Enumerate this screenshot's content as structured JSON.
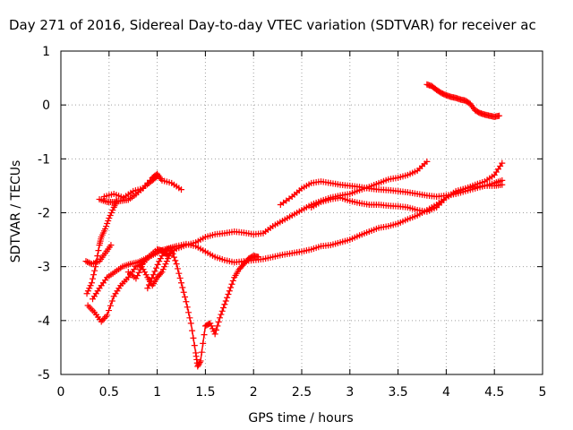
{
  "chart_data": {
    "type": "scatter",
    "title": "Day 271 of 2016, Sidereal Day-to-day VTEC variation (SDTVAR) for receiver ac",
    "xlabel": "GPS time / hours",
    "ylabel": "SDTVAR / TECUs",
    "xlim": [
      0,
      5
    ],
    "ylim": [
      -5,
      1
    ],
    "xticks": [
      "0",
      "0.5",
      "1",
      "1.5",
      "2",
      "2.5",
      "3",
      "3.5",
      "4",
      "4.5",
      "5"
    ],
    "yticks": [
      "-5",
      "-4",
      "-3",
      "-2",
      "-1",
      "0",
      "1"
    ],
    "grid": true,
    "marker": "+",
    "color": "#ff0000",
    "series": [
      {
        "values": [
          [
            0.45,
            -1.7
          ],
          [
            0.55,
            -1.65
          ],
          [
            0.65,
            -1.72
          ],
          [
            0.75,
            -1.6
          ],
          [
            0.85,
            -1.55
          ],
          [
            0.95,
            -1.35
          ],
          [
            1.0,
            -1.28
          ],
          [
            1.05,
            -1.4
          ],
          [
            1.15,
            -1.45
          ],
          [
            1.25,
            -1.57
          ]
        ]
      },
      {
        "values": [
          [
            0.4,
            -1.75
          ],
          [
            0.48,
            -1.8
          ],
          [
            0.55,
            -1.8
          ],
          [
            0.62,
            -1.78
          ],
          [
            0.7,
            -1.76
          ],
          [
            0.78,
            -1.66
          ],
          [
            0.88,
            -1.5
          ],
          [
            0.95,
            -1.4
          ],
          [
            1.0,
            -1.32
          ]
        ]
      },
      {
        "values": [
          [
            0.28,
            -3.72
          ],
          [
            0.35,
            -3.85
          ],
          [
            0.42,
            -4.02
          ],
          [
            0.48,
            -3.9
          ],
          [
            0.55,
            -3.55
          ],
          [
            0.62,
            -3.35
          ],
          [
            0.7,
            -3.2
          ],
          [
            0.78,
            -3.0
          ],
          [
            0.85,
            -2.95
          ],
          [
            0.92,
            -2.8
          ],
          [
            1.0,
            -2.68
          ],
          [
            1.05,
            -2.7
          ],
          [
            1.1,
            -2.78
          ],
          [
            1.2,
            -2.67
          ],
          [
            1.3,
            -2.6
          ],
          [
            1.4,
            -2.55
          ],
          [
            1.5,
            -2.45
          ],
          [
            1.6,
            -2.4
          ],
          [
            1.7,
            -2.38
          ],
          [
            1.8,
            -2.35
          ],
          [
            1.9,
            -2.37
          ],
          [
            2.0,
            -2.4
          ],
          [
            2.1,
            -2.38
          ],
          [
            2.2,
            -2.25
          ],
          [
            2.3,
            -2.15
          ],
          [
            2.4,
            -2.05
          ],
          [
            2.5,
            -1.95
          ],
          [
            2.6,
            -1.85
          ],
          [
            2.7,
            -1.78
          ],
          [
            2.8,
            -1.72
          ],
          [
            2.9,
            -1.68
          ],
          [
            3.0,
            -1.65
          ],
          [
            3.1,
            -1.58
          ],
          [
            3.2,
            -1.52
          ],
          [
            3.3,
            -1.45
          ],
          [
            3.4,
            -1.38
          ],
          [
            3.5,
            -1.35
          ],
          [
            3.6,
            -1.3
          ],
          [
            3.7,
            -1.22
          ],
          [
            3.8,
            -1.05
          ]
        ]
      },
      {
        "values": [
          [
            0.27,
            -3.5
          ],
          [
            0.32,
            -3.3
          ],
          [
            0.36,
            -3.0
          ],
          [
            0.4,
            -2.6
          ],
          [
            0.42,
            -2.45
          ],
          [
            0.46,
            -2.3
          ],
          [
            0.5,
            -2.1
          ],
          [
            0.55,
            -1.9
          ],
          [
            0.58,
            -1.78
          ]
        ]
      },
      {
        "values": [
          [
            0.26,
            -2.9
          ],
          [
            0.32,
            -2.95
          ],
          [
            0.4,
            -2.9
          ],
          [
            0.46,
            -2.75
          ],
          [
            0.52,
            -2.6
          ]
        ]
      },
      {
        "values": [
          [
            0.33,
            -3.6
          ],
          [
            0.4,
            -3.4
          ],
          [
            0.48,
            -3.2
          ],
          [
            0.56,
            -3.1
          ],
          [
            0.64,
            -3.0
          ],
          [
            0.72,
            -2.95
          ],
          [
            0.8,
            -2.92
          ],
          [
            0.88,
            -2.85
          ],
          [
            0.96,
            -2.78
          ],
          [
            1.04,
            -2.7
          ],
          [
            1.12,
            -2.66
          ],
          [
            1.2,
            -2.62
          ],
          [
            1.3,
            -2.58
          ],
          [
            1.4,
            -2.62
          ],
          [
            1.5,
            -2.72
          ],
          [
            1.6,
            -2.82
          ],
          [
            1.7,
            -2.88
          ],
          [
            1.8,
            -2.92
          ],
          [
            1.9,
            -2.9
          ],
          [
            2.0,
            -2.88
          ],
          [
            2.1,
            -2.86
          ],
          [
            2.2,
            -2.82
          ],
          [
            2.3,
            -2.78
          ],
          [
            2.4,
            -2.75
          ],
          [
            2.5,
            -2.72
          ],
          [
            2.6,
            -2.68
          ],
          [
            2.7,
            -2.62
          ],
          [
            2.8,
            -2.6
          ],
          [
            2.9,
            -2.55
          ],
          [
            3.0,
            -2.5
          ],
          [
            3.1,
            -2.42
          ],
          [
            3.2,
            -2.35
          ],
          [
            3.3,
            -2.28
          ],
          [
            3.4,
            -2.25
          ],
          [
            3.5,
            -2.2
          ],
          [
            3.6,
            -2.12
          ],
          [
            3.7,
            -2.05
          ],
          [
            3.8,
            -1.95
          ],
          [
            3.9,
            -1.85
          ],
          [
            4.0,
            -1.72
          ],
          [
            4.1,
            -1.62
          ],
          [
            4.2,
            -1.55
          ],
          [
            4.3,
            -1.48
          ],
          [
            4.4,
            -1.42
          ],
          [
            4.5,
            -1.3
          ],
          [
            4.58,
            -1.08
          ]
        ]
      },
      {
        "values": [
          [
            0.7,
            -3.1
          ],
          [
            0.78,
            -3.22
          ],
          [
            0.84,
            -3.0
          ],
          [
            0.9,
            -3.2
          ],
          [
            0.95,
            -3.35
          ],
          [
            1.0,
            -3.2
          ],
          [
            1.05,
            -3.1
          ],
          [
            1.1,
            -2.9
          ],
          [
            1.15,
            -2.7
          ],
          [
            1.2,
            -2.95
          ],
          [
            1.25,
            -3.3
          ],
          [
            1.3,
            -3.65
          ],
          [
            1.35,
            -4.05
          ],
          [
            1.4,
            -4.6
          ],
          [
            1.42,
            -4.85
          ],
          [
            1.45,
            -4.75
          ],
          [
            1.5,
            -4.1
          ],
          [
            1.55,
            -4.05
          ],
          [
            1.6,
            -4.25
          ],
          [
            1.65,
            -3.95
          ],
          [
            1.7,
            -3.7
          ],
          [
            1.75,
            -3.45
          ],
          [
            1.8,
            -3.2
          ],
          [
            1.85,
            -3.05
          ],
          [
            1.9,
            -2.95
          ],
          [
            1.95,
            -2.85
          ],
          [
            2.0,
            -2.8
          ],
          [
            2.05,
            -2.82
          ]
        ]
      },
      {
        "values": [
          [
            0.9,
            -3.4
          ],
          [
            0.96,
            -3.15
          ],
          [
            1.02,
            -2.9
          ],
          [
            1.08,
            -2.7
          ],
          [
            1.14,
            -2.65
          ]
        ]
      },
      {
        "values": [
          [
            2.28,
            -1.85
          ],
          [
            2.4,
            -1.7
          ],
          [
            2.5,
            -1.55
          ],
          [
            2.6,
            -1.45
          ],
          [
            2.7,
            -1.42
          ],
          [
            2.8,
            -1.45
          ],
          [
            2.9,
            -1.48
          ],
          [
            3.0,
            -1.5
          ],
          [
            3.1,
            -1.52
          ],
          [
            3.2,
            -1.55
          ],
          [
            3.3,
            -1.57
          ],
          [
            3.4,
            -1.58
          ],
          [
            3.5,
            -1.6
          ],
          [
            3.6,
            -1.62
          ],
          [
            3.7,
            -1.65
          ],
          [
            3.8,
            -1.68
          ],
          [
            3.9,
            -1.7
          ],
          [
            4.0,
            -1.68
          ],
          [
            4.1,
            -1.65
          ],
          [
            4.2,
            -1.6
          ],
          [
            4.3,
            -1.55
          ],
          [
            4.4,
            -1.5
          ],
          [
            4.5,
            -1.45
          ],
          [
            4.58,
            -1.4
          ]
        ]
      },
      {
        "values": [
          [
            2.6,
            -1.9
          ],
          [
            2.7,
            -1.8
          ],
          [
            2.8,
            -1.75
          ],
          [
            2.9,
            -1.72
          ],
          [
            3.0,
            -1.78
          ],
          [
            3.1,
            -1.82
          ],
          [
            3.2,
            -1.85
          ],
          [
            3.3,
            -1.85
          ],
          [
            3.4,
            -1.87
          ],
          [
            3.5,
            -1.88
          ],
          [
            3.6,
            -1.9
          ],
          [
            3.7,
            -1.95
          ],
          [
            3.8,
            -1.98
          ],
          [
            3.9,
            -1.9
          ],
          [
            4.0,
            -1.72
          ],
          [
            4.1,
            -1.6
          ],
          [
            4.2,
            -1.55
          ],
          [
            4.3,
            -1.52
          ],
          [
            4.4,
            -1.5
          ],
          [
            4.5,
            -1.5
          ],
          [
            4.58,
            -1.48
          ]
        ]
      },
      {
        "values": [
          [
            3.8,
            0.38
          ],
          [
            3.85,
            0.35
          ],
          [
            3.9,
            0.28
          ],
          [
            3.95,
            0.22
          ],
          [
            4.0,
            0.18
          ],
          [
            4.05,
            0.15
          ],
          [
            4.1,
            0.13
          ],
          [
            4.15,
            0.1
          ],
          [
            4.2,
            0.08
          ],
          [
            4.25,
            0.02
          ],
          [
            4.3,
            -0.1
          ],
          [
            4.35,
            -0.15
          ],
          [
            4.4,
            -0.18
          ],
          [
            4.45,
            -0.2
          ],
          [
            4.5,
            -0.22
          ],
          [
            4.55,
            -0.2
          ]
        ]
      }
    ]
  }
}
